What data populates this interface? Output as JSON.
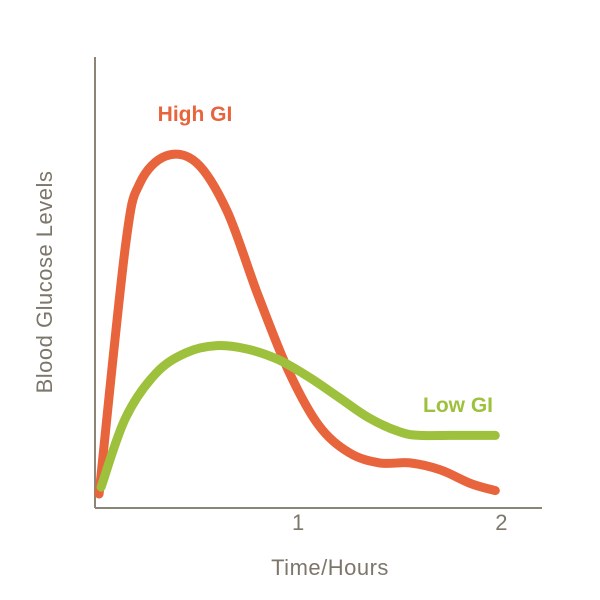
{
  "chart_data": {
    "type": "line",
    "title": "",
    "xlabel": "Time/Hours",
    "ylabel": "Blood Glucose Levels",
    "xlim": [
      0,
      2.2
    ],
    "ylim": [
      0,
      1
    ],
    "x_ticks": [
      {
        "value": 1,
        "label": "1"
      },
      {
        "value": 2,
        "label": "2"
      }
    ],
    "grid": false,
    "legend": "inline labels",
    "series": [
      {
        "name": "High GI",
        "color": "#e8643c",
        "x": [
          0.02,
          0.15,
          0.22,
          0.35,
          0.5,
          0.65,
          0.8,
          0.95,
          1.1,
          1.25,
          1.4,
          1.55,
          1.7,
          1.85,
          1.97
        ],
        "y": [
          0.0,
          0.72,
          0.9,
          0.98,
          0.96,
          0.82,
          0.58,
          0.36,
          0.2,
          0.12,
          0.09,
          0.09,
          0.07,
          0.03,
          0.01
        ]
      },
      {
        "name": "Low GI",
        "color": "#9dc13c",
        "x": [
          0.03,
          0.15,
          0.3,
          0.45,
          0.6,
          0.75,
          0.9,
          1.05,
          1.2,
          1.35,
          1.5,
          1.6,
          1.75,
          1.97
        ],
        "y": [
          0.02,
          0.22,
          0.35,
          0.41,
          0.43,
          0.42,
          0.39,
          0.34,
          0.28,
          0.22,
          0.18,
          0.17,
          0.17,
          0.17
        ]
      }
    ]
  }
}
